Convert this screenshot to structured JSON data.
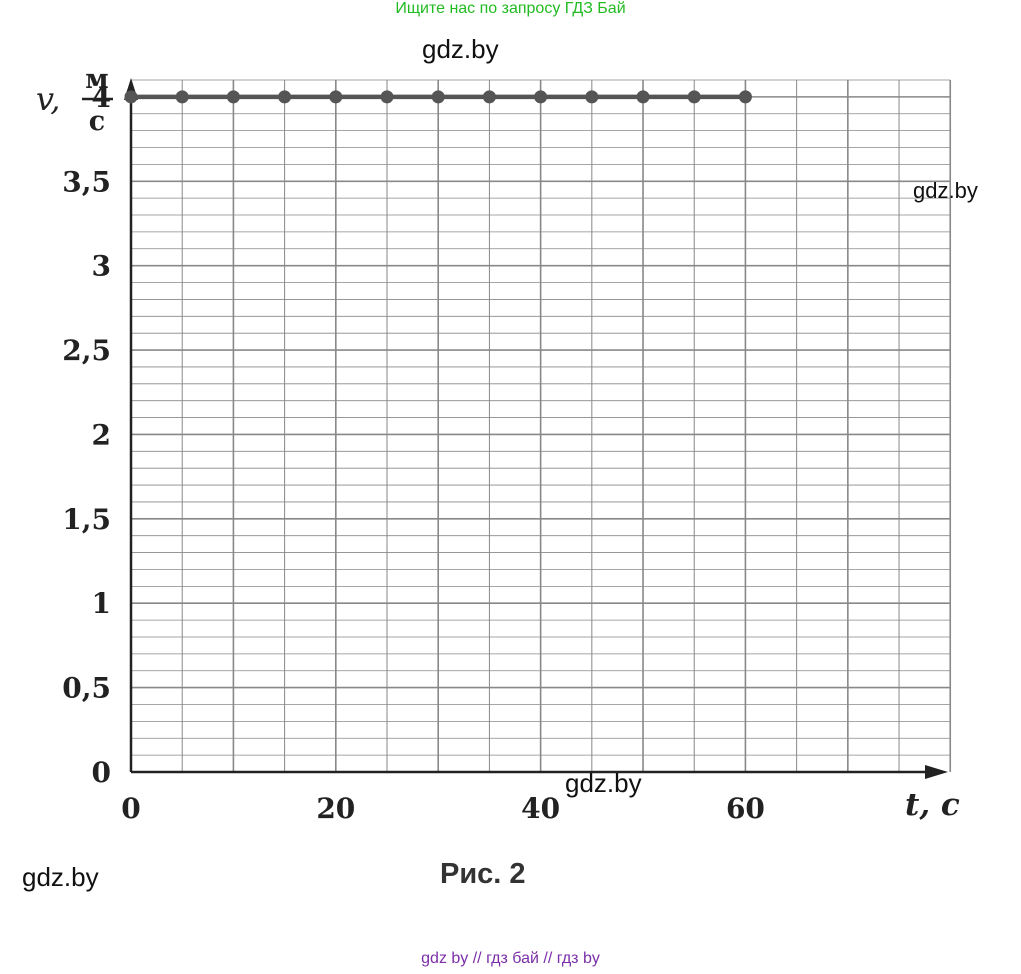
{
  "banner": "Ищите нас по запросу ГДЗ Бай",
  "watermarks": [
    "gdz.by",
    "gdz.by",
    "gdz.by",
    "gdz.by"
  ],
  "caption": "Рис. 2",
  "footer": "gdz by  //  гдз бай  //  гдз by",
  "colors": {
    "line": "#555555",
    "grid": "#888888",
    "axis": "#222222"
  },
  "chart_data": {
    "type": "line",
    "y_axis_symbol": "v,",
    "y_unit_numerator": "м",
    "y_unit_denominator": "с",
    "x_axis_label": "t, с",
    "xlim": [
      0,
      79
    ],
    "ylim": [
      0,
      4.1
    ],
    "x_tick_labels": [
      "0",
      "20",
      "40",
      "60"
    ],
    "x_tick_values": [
      0,
      20,
      40,
      60
    ],
    "y_tick_labels": [
      "0",
      "0,5",
      "1",
      "1,5",
      "2",
      "2,5",
      "3",
      "3,5",
      "4"
    ],
    "y_tick_values": [
      0,
      0.5,
      1,
      1.5,
      2,
      2.5,
      3,
      3.5,
      4
    ],
    "grid": true,
    "series": [
      {
        "x": [
          0,
          5,
          10,
          15,
          20,
          25,
          30,
          35,
          40,
          45,
          50,
          55,
          60
        ],
        "y": [
          4,
          4,
          4,
          4,
          4,
          4,
          4,
          4,
          4,
          4,
          4,
          4,
          4
        ]
      }
    ]
  }
}
